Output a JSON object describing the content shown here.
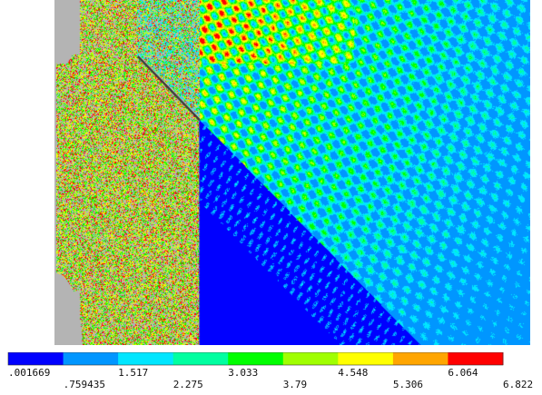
{
  "chart_data": {
    "type": "heatmap",
    "title": "",
    "xlabel": "",
    "ylabel": "",
    "colorbar": {
      "colors": [
        "#0000ff",
        "#0096ff",
        "#00e6ff",
        "#00ffa0",
        "#00ff00",
        "#a0ff00",
        "#ffff00",
        "#ffa500",
        "#ff0000"
      ],
      "range": [
        0.001669,
        6.822
      ],
      "ticks_upper": [
        {
          "value": 0.001669,
          "label": ".001669"
        },
        {
          "value": 1.517,
          "label": "1.517"
        },
        {
          "value": 3.033,
          "label": "3.033"
        },
        {
          "value": 4.548,
          "label": "4.548"
        },
        {
          "value": 6.064,
          "label": "6.064"
        }
      ],
      "ticks_lower": [
        {
          "value": 0.759435,
          "label": ".759435"
        },
        {
          "value": 2.275,
          "label": "2.275"
        },
        {
          "value": 3.79,
          "label": "3.79"
        },
        {
          "value": 5.306,
          "label": "5.306"
        },
        {
          "value": 6.822,
          "label": "6.822"
        }
      ]
    },
    "field": {
      "background_color": "#b4b4b4",
      "low_region_color": "#0000ff",
      "noise_colors": [
        "#ff0000",
        "#ffff00",
        "#00ff00",
        "#a0ff00",
        "#b4b4b4"
      ]
    }
  }
}
